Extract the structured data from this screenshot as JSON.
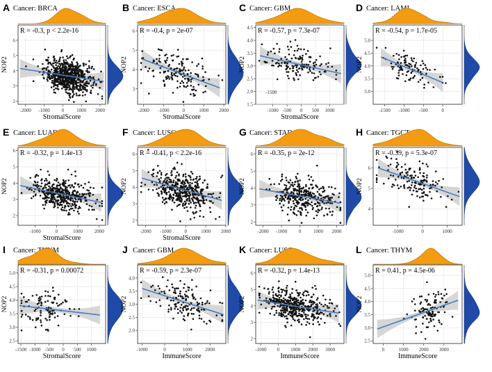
{
  "colors": {
    "density": "#f39c12",
    "density_stroke": "#c77800",
    "violin": "#1f4aa8",
    "points": "#111111",
    "line": "#4a7bbf",
    "band": "#c8c8c8",
    "border": "#222222",
    "grid": "#dcdcdc"
  },
  "chart_data": [
    {
      "type": "scatter",
      "letter": "A",
      "title": "Cancer: BRCA",
      "stat": "R = -0.3, p < 2.2e-16",
      "xlabel": "StromalScore",
      "ylabel": "NOP2",
      "xlim": [
        -2400,
        2300
      ],
      "ylim": [
        1.8,
        7.0
      ],
      "xticks": [
        -2000,
        -1000,
        0,
        1000,
        2000
      ],
      "yticks": [
        2,
        3,
        4,
        5,
        6
      ],
      "fit": [
        -2300,
        4.15,
        2200,
        3.3
      ],
      "n": 700,
      "x_mean": 300,
      "x_sd": 650,
      "noise": 0.55
    },
    {
      "type": "scatter",
      "letter": "B",
      "title": "Cancer: ESCA",
      "stat": "R = -0.4, p = 2e-07",
      "xlabel": "StromalScore",
      "ylabel": "NOP2",
      "xlim": [
        -2300,
        2100
      ],
      "ylim": [
        2.2,
        6.3
      ],
      "xticks": [
        -2000,
        -1000,
        0,
        1000,
        2000
      ],
      "yticks": [
        3,
        4,
        5,
        6
      ],
      "fit": [
        -2100,
        4.55,
        1800,
        3.05
      ],
      "n": 160,
      "x_mean": -300,
      "x_sd": 800,
      "noise": 0.55
    },
    {
      "type": "scatter",
      "letter": "C",
      "title": "Cancer: GBM",
      "stat": "R = -0.57, p = 7.3e-07",
      "xlabel": "StromalScore",
      "ylabel": "NOP2",
      "xlim": [
        -1600,
        1500
      ],
      "ylim": [
        1.5,
        4.6
      ],
      "xticks": [
        -1000,
        -500,
        0,
        500,
        1000
      ],
      "yticks": [
        1.5,
        2.0,
        2.5,
        3.0,
        3.5,
        4.0,
        4.5
      ],
      "inner_label": "-1500",
      "fit": [
        -1450,
        3.4,
        1400,
        2.7
      ],
      "n": 150,
      "x_mean": -100,
      "x_sd": 600,
      "noise": 0.35
    },
    {
      "type": "scatter",
      "letter": "D",
      "title": "Cancer: LAML",
      "stat": "R = -0.54, p = 1.7e-05",
      "xlabel": "",
      "ylabel": "NOP2",
      "xlim": [
        -1800,
        500
      ],
      "ylim": [
        2.5,
        5.6
      ],
      "xticks": [
        -1500,
        -1000,
        -500,
        0
      ],
      "yticks": [
        3.0,
        3.5,
        4.0,
        4.5,
        5.0
      ],
      "fit": [
        -1600,
        4.35,
        0,
        3.35
      ],
      "n": 100,
      "x_mean": -900,
      "x_sd": 350,
      "noise": 0.3
    },
    {
      "type": "scatter",
      "letter": "E",
      "title": "Cancer: LUAD",
      "stat": "R = -0.32, p = 1.4e-13",
      "xlabel": "StromalScore",
      "ylabel": "NOP2",
      "xlim": [
        -1800,
        2300
      ],
      "ylim": [
        1.4,
        6.2
      ],
      "xticks": [
        -1000,
        0,
        1000,
        2000
      ],
      "yticks": [
        2,
        3,
        4,
        5,
        6
      ],
      "fit": [
        -1700,
        3.85,
        2100,
        2.8
      ],
      "n": 450,
      "x_mean": 200,
      "x_sd": 700,
      "noise": 0.5
    },
    {
      "type": "scatter",
      "letter": "F",
      "title": "Cancer: LUSC",
      "stat": "R = -0.41, p < 2.2e-16",
      "xlabel": "StromalScore",
      "ylabel": "NOP2",
      "xlim": [
        -2400,
        2000
      ],
      "ylim": [
        1.7,
        6.4
      ],
      "xticks": [
        -2000,
        -1000,
        0,
        1000,
        2000
      ],
      "yticks": [
        2,
        3,
        4,
        5,
        6
      ],
      "fit": [
        -2200,
        4.55,
        1800,
        3.2
      ],
      "n": 450,
      "x_mean": -200,
      "x_sd": 750,
      "noise": 0.55
    },
    {
      "type": "scatter",
      "letter": "G",
      "title": "Cancer: STAD",
      "stat": "R = -0.35, p = 2e-12",
      "xlabel": "",
      "ylabel": "NOP2",
      "xlim": [
        -2400,
        2400
      ],
      "ylim": [
        1.8,
        6.4
      ],
      "xticks": [
        -2000,
        -1000,
        0,
        1000,
        2000
      ],
      "yticks": [
        2,
        3,
        4,
        5,
        6
      ],
      "fit": [
        -2200,
        3.95,
        2200,
        3.1
      ],
      "n": 350,
      "x_mean": 200,
      "x_sd": 800,
      "noise": 0.5
    },
    {
      "type": "scatter",
      "letter": "H",
      "title": "Cancer: TGCT",
      "stat": "R = -0.39, p = 5.3e-07",
      "xlabel": "",
      "ylabel": "NOP2",
      "xlim": [
        -2000,
        1600
      ],
      "ylim": [
        3.2,
        7.0
      ],
      "xticks": [
        -1000,
        0,
        1000
      ],
      "yticks": [
        4,
        5,
        6
      ],
      "fit": [
        -1800,
        6.0,
        1500,
        4.6
      ],
      "n": 150,
      "x_mean": -300,
      "x_sd": 650,
      "noise": 0.45
    },
    {
      "type": "scatter",
      "letter": "I",
      "title": "Cancer: THYM",
      "stat": "R = -0.31, p = 0.00072",
      "xlabel": "StromalScore",
      "ylabel": "NOP2",
      "xlim": [
        -1600,
        1500
      ],
      "ylim": [
        2.4,
        5.3
      ],
      "xticks": [
        -1500,
        -1000,
        -500,
        0,
        500,
        1000
      ],
      "yticks": [
        2.5,
        3.0,
        3.5,
        4.0,
        4.5,
        5.0
      ],
      "fit": [
        -1550,
        3.8,
        1300,
        3.45
      ],
      "n": 110,
      "x_mean": -700,
      "x_sd": 450,
      "noise": 0.45
    },
    {
      "type": "scatter",
      "letter": "J",
      "title": "Cancer: GBM",
      "stat": "R = -0.59, p = 2.3e-07",
      "xlabel": "ImmuneScore",
      "ylabel": "NOP2",
      "xlim": [
        -1200,
        2700
      ],
      "ylim": [
        1.5,
        4.5
      ],
      "xticks": [
        -1000,
        0,
        1000,
        2000
      ],
      "yticks": [
        2.0,
        2.5,
        3.0,
        3.5,
        4.0
      ],
      "fit": [
        -1000,
        3.6,
        2600,
        2.6
      ],
      "n": 150,
      "x_mean": 900,
      "x_sd": 700,
      "noise": 0.35
    },
    {
      "type": "scatter",
      "letter": "K",
      "title": "Cancer: LUSC",
      "stat": "R = -0.32, p = 1.4e-13",
      "xlabel": "ImmuneScore",
      "ylabel": "NOP2",
      "xlim": [
        -1300,
        3800
      ],
      "ylim": [
        1.7,
        6.5
      ],
      "xticks": [
        -1000,
        0,
        1000,
        2000,
        3000
      ],
      "yticks": [
        2,
        3,
        4,
        5,
        6
      ],
      "fit": [
        -1200,
        4.35,
        3500,
        3.55
      ],
      "n": 450,
      "x_mean": 1000,
      "x_sd": 900,
      "noise": 0.5
    },
    {
      "type": "scatter",
      "letter": "L",
      "title": "Cancer: THYM",
      "stat": "R = 0.41, p = 4.5e-06",
      "xlabel": "ImmuneScore",
      "ylabel": "NOP2",
      "xlim": [
        -500,
        3900
      ],
      "ylim": [
        2.4,
        5.4
      ],
      "xticks": [
        0,
        1000,
        2000,
        3000
      ],
      "yticks": [
        2.5,
        3.0,
        3.5,
        4.0,
        4.5,
        5.0
      ],
      "fit": [
        -300,
        2.95,
        3700,
        4.05
      ],
      "n": 110,
      "x_mean": 2300,
      "x_sd": 500,
      "noise": 0.4
    }
  ]
}
